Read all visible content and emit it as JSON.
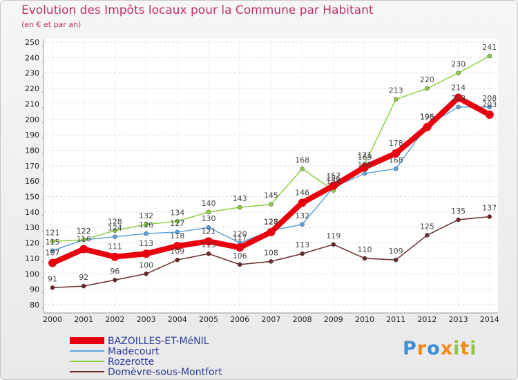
{
  "title": "Evolution des Impôts locaux pour la Commune par Habitant",
  "subtitle": "(en € et par an)",
  "logo": [
    "P",
    "r",
    "o",
    "x",
    "i",
    "t",
    "i"
  ],
  "colors": {
    "title": "#c0306a",
    "logo": [
      "#3a8fd6",
      "#f08a1c",
      "#3a8fd6",
      "#f08a1c",
      "#8cc63f",
      "#f08a1c",
      "#8cc63f"
    ]
  },
  "chart_data": {
    "type": "line",
    "title": "Evolution des Impôts locaux pour la Commune par Habitant",
    "ylabel": "(en € et par an)",
    "ylim": [
      80,
      250
    ],
    "yticks": [
      80,
      90,
      100,
      110,
      120,
      130,
      140,
      150,
      160,
      170,
      180,
      190,
      200,
      210,
      220,
      230,
      240,
      250
    ],
    "categories": [
      "2000",
      "2001",
      "2002",
      "2003",
      "2004",
      "2005",
      "2006",
      "2007",
      "2008",
      "2009",
      "2010",
      "2011",
      "2012",
      "2013",
      "2014"
    ],
    "legend_position": "bottom-left",
    "series": [
      {
        "name": "BAZOILLES-ET-MéNIL",
        "color": "#e8000d",
        "highlight": true,
        "values": [
          107,
          116,
          111,
          113,
          118,
          121,
          117,
          127,
          146,
          157,
          169,
          178,
          195,
          214,
          203
        ]
      },
      {
        "name": "Madecourt",
        "color": "#5da3d9",
        "values": [
          115,
          122,
          124,
          126,
          127,
          130,
          120,
          128,
          132,
          156,
          165,
          168,
          196,
          208,
          208
        ]
      },
      {
        "name": "Rozerotte",
        "color": "#8cd03f",
        "values": [
          121,
          122,
          128,
          132,
          134,
          140,
          143,
          145,
          168,
          154,
          171,
          213,
          220,
          230,
          241
        ]
      },
      {
        "name": "Domèvre-sous-Montfort",
        "color": "#6b2a2a",
        "values": [
          91,
          92,
          96,
          100,
          109,
          113,
          106,
          108,
          113,
          119,
          110,
          109,
          125,
          135,
          137
        ]
      }
    ]
  }
}
